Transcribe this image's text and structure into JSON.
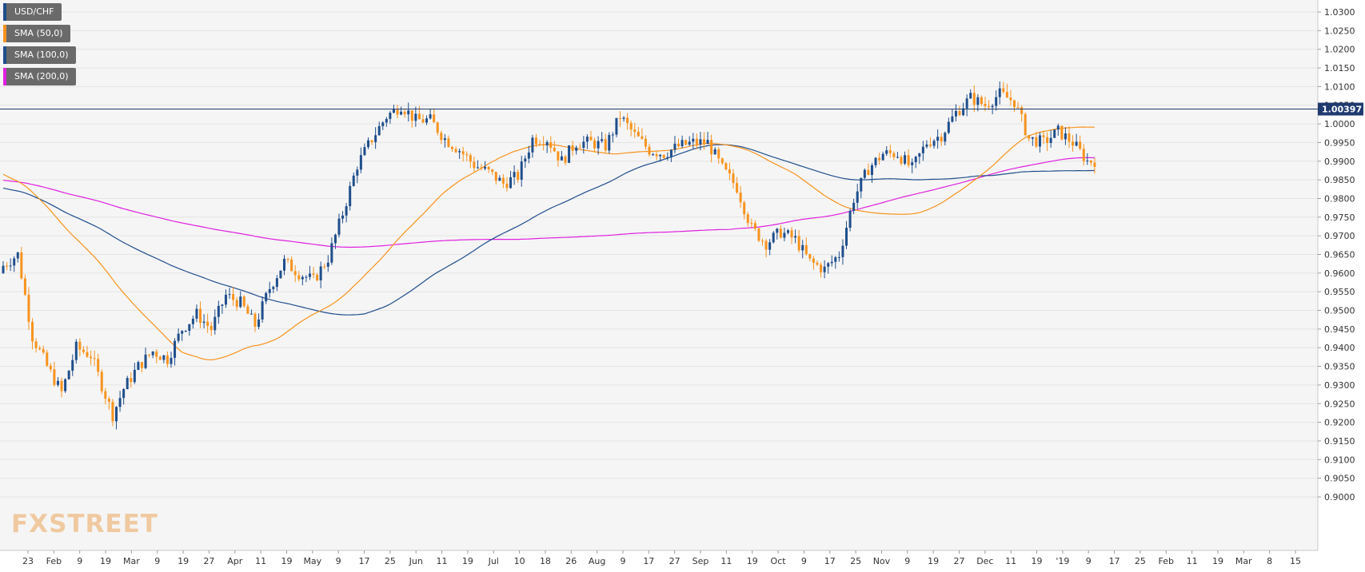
{
  "chart_data": {
    "type": "candlestick",
    "instrument": "USD/CHF",
    "timeframe": "Daily",
    "ylim": [
      0.9,
      1.0325
    ],
    "grid": true,
    "legend_position": "top-left",
    "y_ticks": [
      "1.0300",
      "1.0250",
      "1.0200",
      "1.0150",
      "1.0100",
      "1.0050",
      "1.0000",
      "0.9950",
      "0.9900",
      "0.9850",
      "0.9800",
      "0.9750",
      "0.9700",
      "0.9650",
      "0.9600",
      "0.9550",
      "0.9500",
      "0.9450",
      "0.9400",
      "0.9350",
      "0.9300",
      "0.9250",
      "0.9200",
      "0.9150",
      "0.9100",
      "0.9050",
      "0.9000"
    ],
    "x_tick_labels": [
      "23",
      "Feb",
      "9",
      "19",
      "Mar",
      "9",
      "19",
      "27",
      "Apr",
      "11",
      "19",
      "May",
      "9",
      "17",
      "25",
      "Jun",
      "11",
      "19",
      "Jul",
      "10",
      "18",
      "26",
      "Aug",
      "9",
      "17",
      "27",
      "Sep",
      "11",
      "19",
      "Oct",
      "9",
      "17",
      "25",
      "Nov",
      "9",
      "19",
      "27",
      "Dec",
      "11",
      "19",
      "'19",
      "9",
      "17",
      "25",
      "Feb",
      "11",
      "19",
      "Mar",
      "8",
      "15"
    ],
    "last_price": "1.00397",
    "candle_count": 300,
    "legend": [
      {
        "label": "USD/CHF",
        "color": "#1f4e8c"
      },
      {
        "label": "SMA (50,0)",
        "color": "#f7931e"
      },
      {
        "label": "SMA (100,0)",
        "color": "#1f4e8c"
      },
      {
        "label": "SMA (200,0)",
        "color": "#e020e0"
      }
    ],
    "anchors": [
      [
        0,
        0.962
      ],
      [
        4,
        0.965
      ],
      [
        8,
        0.943
      ],
      [
        12,
        0.935
      ],
      [
        16,
        0.928
      ],
      [
        20,
        0.94
      ],
      [
        24,
        0.938
      ],
      [
        27,
        0.93
      ],
      [
        30,
        0.922
      ],
      [
        33,
        0.929
      ],
      [
        37,
        0.935
      ],
      [
        41,
        0.939
      ],
      [
        45,
        0.937
      ],
      [
        49,
        0.945
      ],
      [
        53,
        0.949
      ],
      [
        57,
        0.945
      ],
      [
        61,
        0.954
      ],
      [
        65,
        0.952
      ],
      [
        69,
        0.946
      ],
      [
        73,
        0.956
      ],
      [
        77,
        0.963
      ],
      [
        81,
        0.96
      ],
      [
        85,
        0.958
      ],
      [
        89,
        0.964
      ],
      [
        93,
        0.976
      ],
      [
        97,
        0.989
      ],
      [
        101,
        0.996
      ],
      [
        105,
        1.002
      ],
      [
        109,
        1.005
      ],
      [
        113,
        1.001
      ],
      [
        117,
        1.001
      ],
      [
        121,
        0.996
      ],
      [
        125,
        0.993
      ],
      [
        129,
        0.989
      ],
      [
        133,
        0.987
      ],
      [
        137,
        0.984
      ],
      [
        141,
        0.986
      ],
      [
        145,
        0.996
      ],
      [
        149,
        0.996
      ],
      [
        153,
        0.99
      ],
      [
        157,
        0.995
      ],
      [
        161,
        0.995
      ],
      [
        165,
        0.994
      ],
      [
        169,
        1.002
      ],
      [
        173,
        0.997
      ],
      [
        177,
        0.993
      ],
      [
        181,
        0.992
      ],
      [
        185,
        0.994
      ],
      [
        189,
        0.995
      ],
      [
        193,
        0.995
      ],
      [
        197,
        0.988
      ],
      [
        201,
        0.983
      ],
      [
        205,
        0.972
      ],
      [
        209,
        0.968
      ],
      [
        213,
        0.971
      ],
      [
        217,
        0.969
      ],
      [
        221,
        0.963
      ],
      [
        225,
        0.961
      ],
      [
        229,
        0.965
      ],
      [
        233,
        0.98
      ],
      [
        237,
        0.988
      ],
      [
        241,
        0.992
      ],
      [
        245,
        0.992
      ],
      [
        249,
        0.988
      ],
      [
        253,
        0.995
      ],
      [
        257,
        0.997
      ],
      [
        261,
        1.003
      ],
      [
        265,
        1.007
      ],
      [
        269,
        1.005
      ],
      [
        273,
        1.008
      ],
      [
        277,
        1.006
      ],
      [
        281,
        0.996
      ],
      [
        285,
        0.995
      ],
      [
        289,
        0.998
      ],
      [
        293,
        0.995
      ],
      [
        297,
        0.99
      ]
    ]
  }
}
